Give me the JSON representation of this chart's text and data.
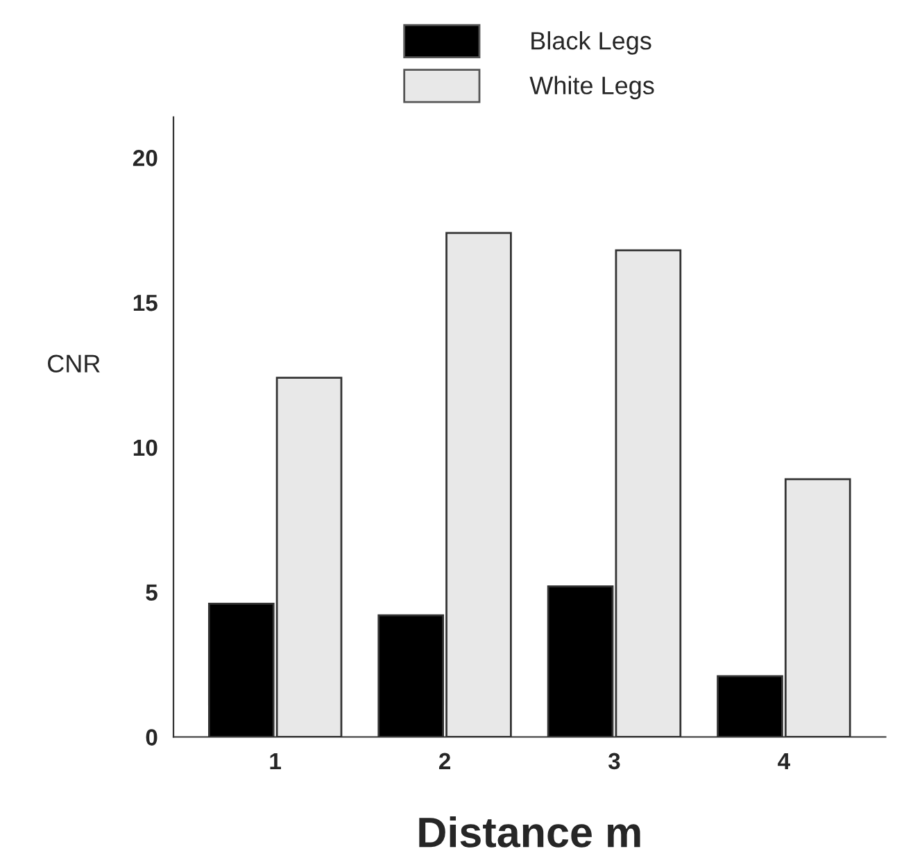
{
  "chart_data": {
    "type": "bar",
    "xlabel": "Distance m",
    "ylabel": "CNR",
    "categories": [
      "1",
      "2",
      "3",
      "4"
    ],
    "series": [
      {
        "name": "Black Legs",
        "color": "#000000",
        "values": [
          4.6,
          4.2,
          5.2,
          2.1
        ]
      },
      {
        "name": "White Legs",
        "color": "#e8e8e8",
        "values": [
          12.4,
          17.4,
          16.8,
          8.9
        ]
      }
    ],
    "ylim": [
      0,
      21.4
    ],
    "yticks": [
      0,
      5,
      10,
      15,
      20
    ],
    "grid": false,
    "legend": "top"
  }
}
